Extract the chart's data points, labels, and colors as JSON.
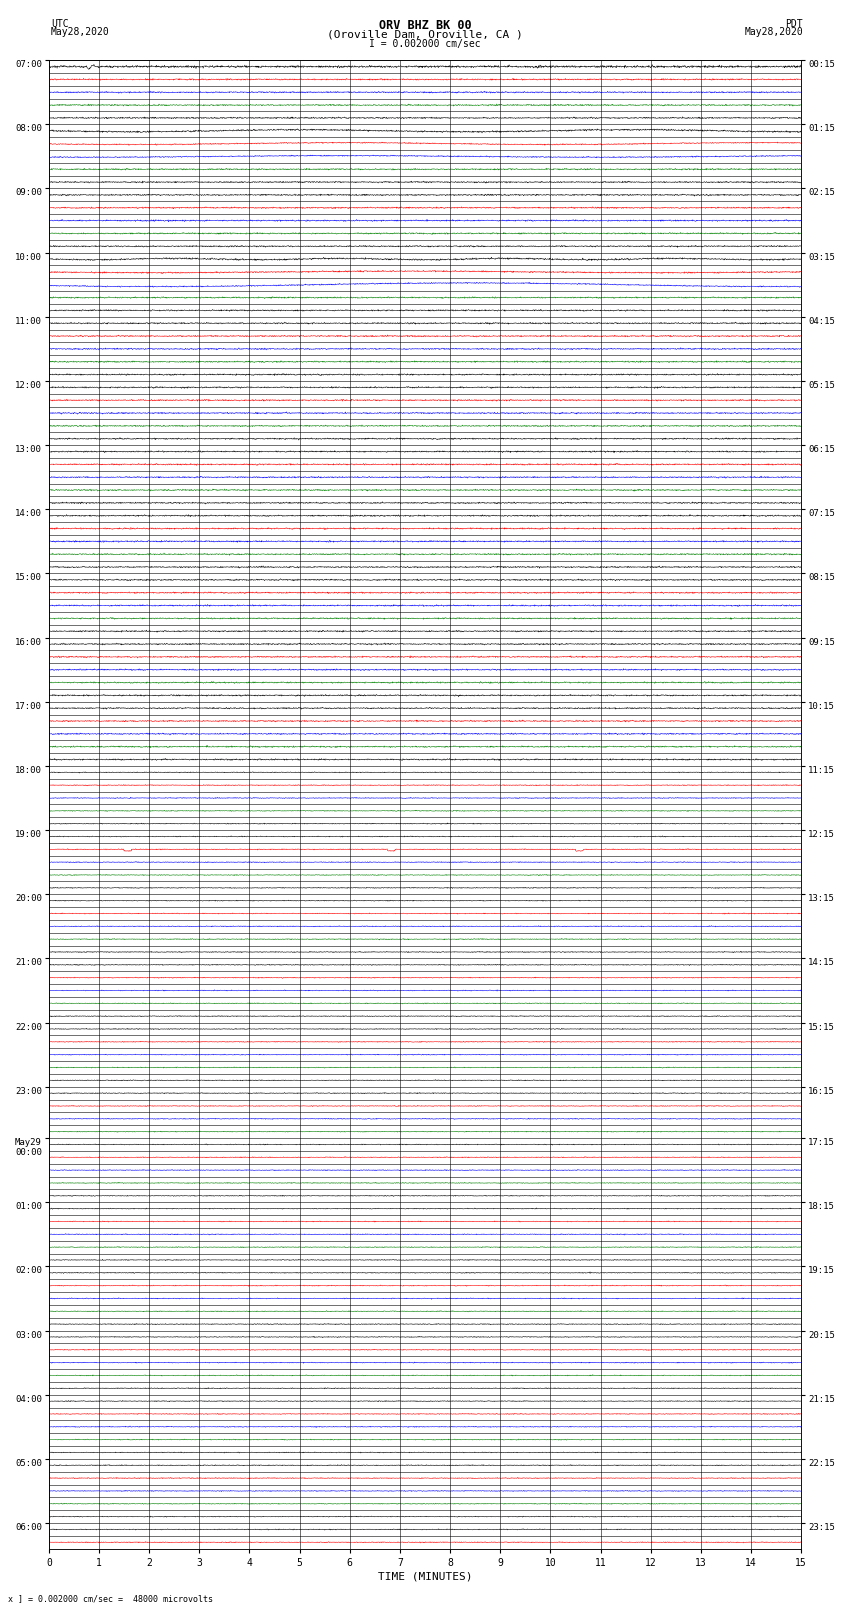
{
  "title_line1": "ORV BHZ BK 00",
  "title_line2": "(Oroville Dam, Oroville, CA )",
  "title_scale": "I = 0.002000 cm/sec",
  "left_label_top": "UTC",
  "left_label_date": "May28,2020",
  "right_label_top": "PDT",
  "right_label_date": "May28,2020",
  "bottom_label": "TIME (MINUTES)",
  "bottom_note": "x ] = 0.002000 cm/sec =  48000 microvolts",
  "n_minutes": 15,
  "bg_color": "#ffffff",
  "trace_colors": [
    "#000000",
    "#ff0000",
    "#0000ff",
    "#008000"
  ],
  "grid_color": "#000000",
  "fig_width": 8.5,
  "fig_height": 16.13,
  "utc_rows": [
    {
      "label": "07:00",
      "sub": 5
    },
    {
      "label": "08:00",
      "sub": 5
    },
    {
      "label": "09:00",
      "sub": 5
    },
    {
      "label": "10:00",
      "sub": 5
    },
    {
      "label": "11:00",
      "sub": 5
    },
    {
      "label": "12:00",
      "sub": 5
    },
    {
      "label": "13:00",
      "sub": 5
    },
    {
      "label": "14:00",
      "sub": 5
    },
    {
      "label": "15:00",
      "sub": 5
    },
    {
      "label": "16:00",
      "sub": 5
    },
    {
      "label": "17:00",
      "sub": 5
    },
    {
      "label": "18:00",
      "sub": 5
    },
    {
      "label": "19:00",
      "sub": 5
    },
    {
      "label": "20:00",
      "sub": 5
    },
    {
      "label": "21:00",
      "sub": 5
    },
    {
      "label": "22:00",
      "sub": 5
    },
    {
      "label": "23:00",
      "sub": 4
    },
    {
      "label": "May29\n00:00",
      "sub": 5
    },
    {
      "label": "01:00",
      "sub": 5
    },
    {
      "label": "02:00",
      "sub": 5
    },
    {
      "label": "03:00",
      "sub": 5
    },
    {
      "label": "04:00",
      "sub": 5
    },
    {
      "label": "05:00",
      "sub": 5
    },
    {
      "label": "06:00",
      "sub": 2
    }
  ],
  "pdt_rows": [
    "00:15",
    "01:15",
    "02:15",
    "03:15",
    "04:15",
    "05:15",
    "06:15",
    "07:15",
    "08:15",
    "09:15",
    "10:15",
    "11:15",
    "12:15",
    "13:15",
    "14:15",
    "15:15",
    "16:15",
    "17:15",
    "18:15",
    "19:15",
    "20:15",
    "21:15",
    "22:15",
    "23:15"
  ]
}
